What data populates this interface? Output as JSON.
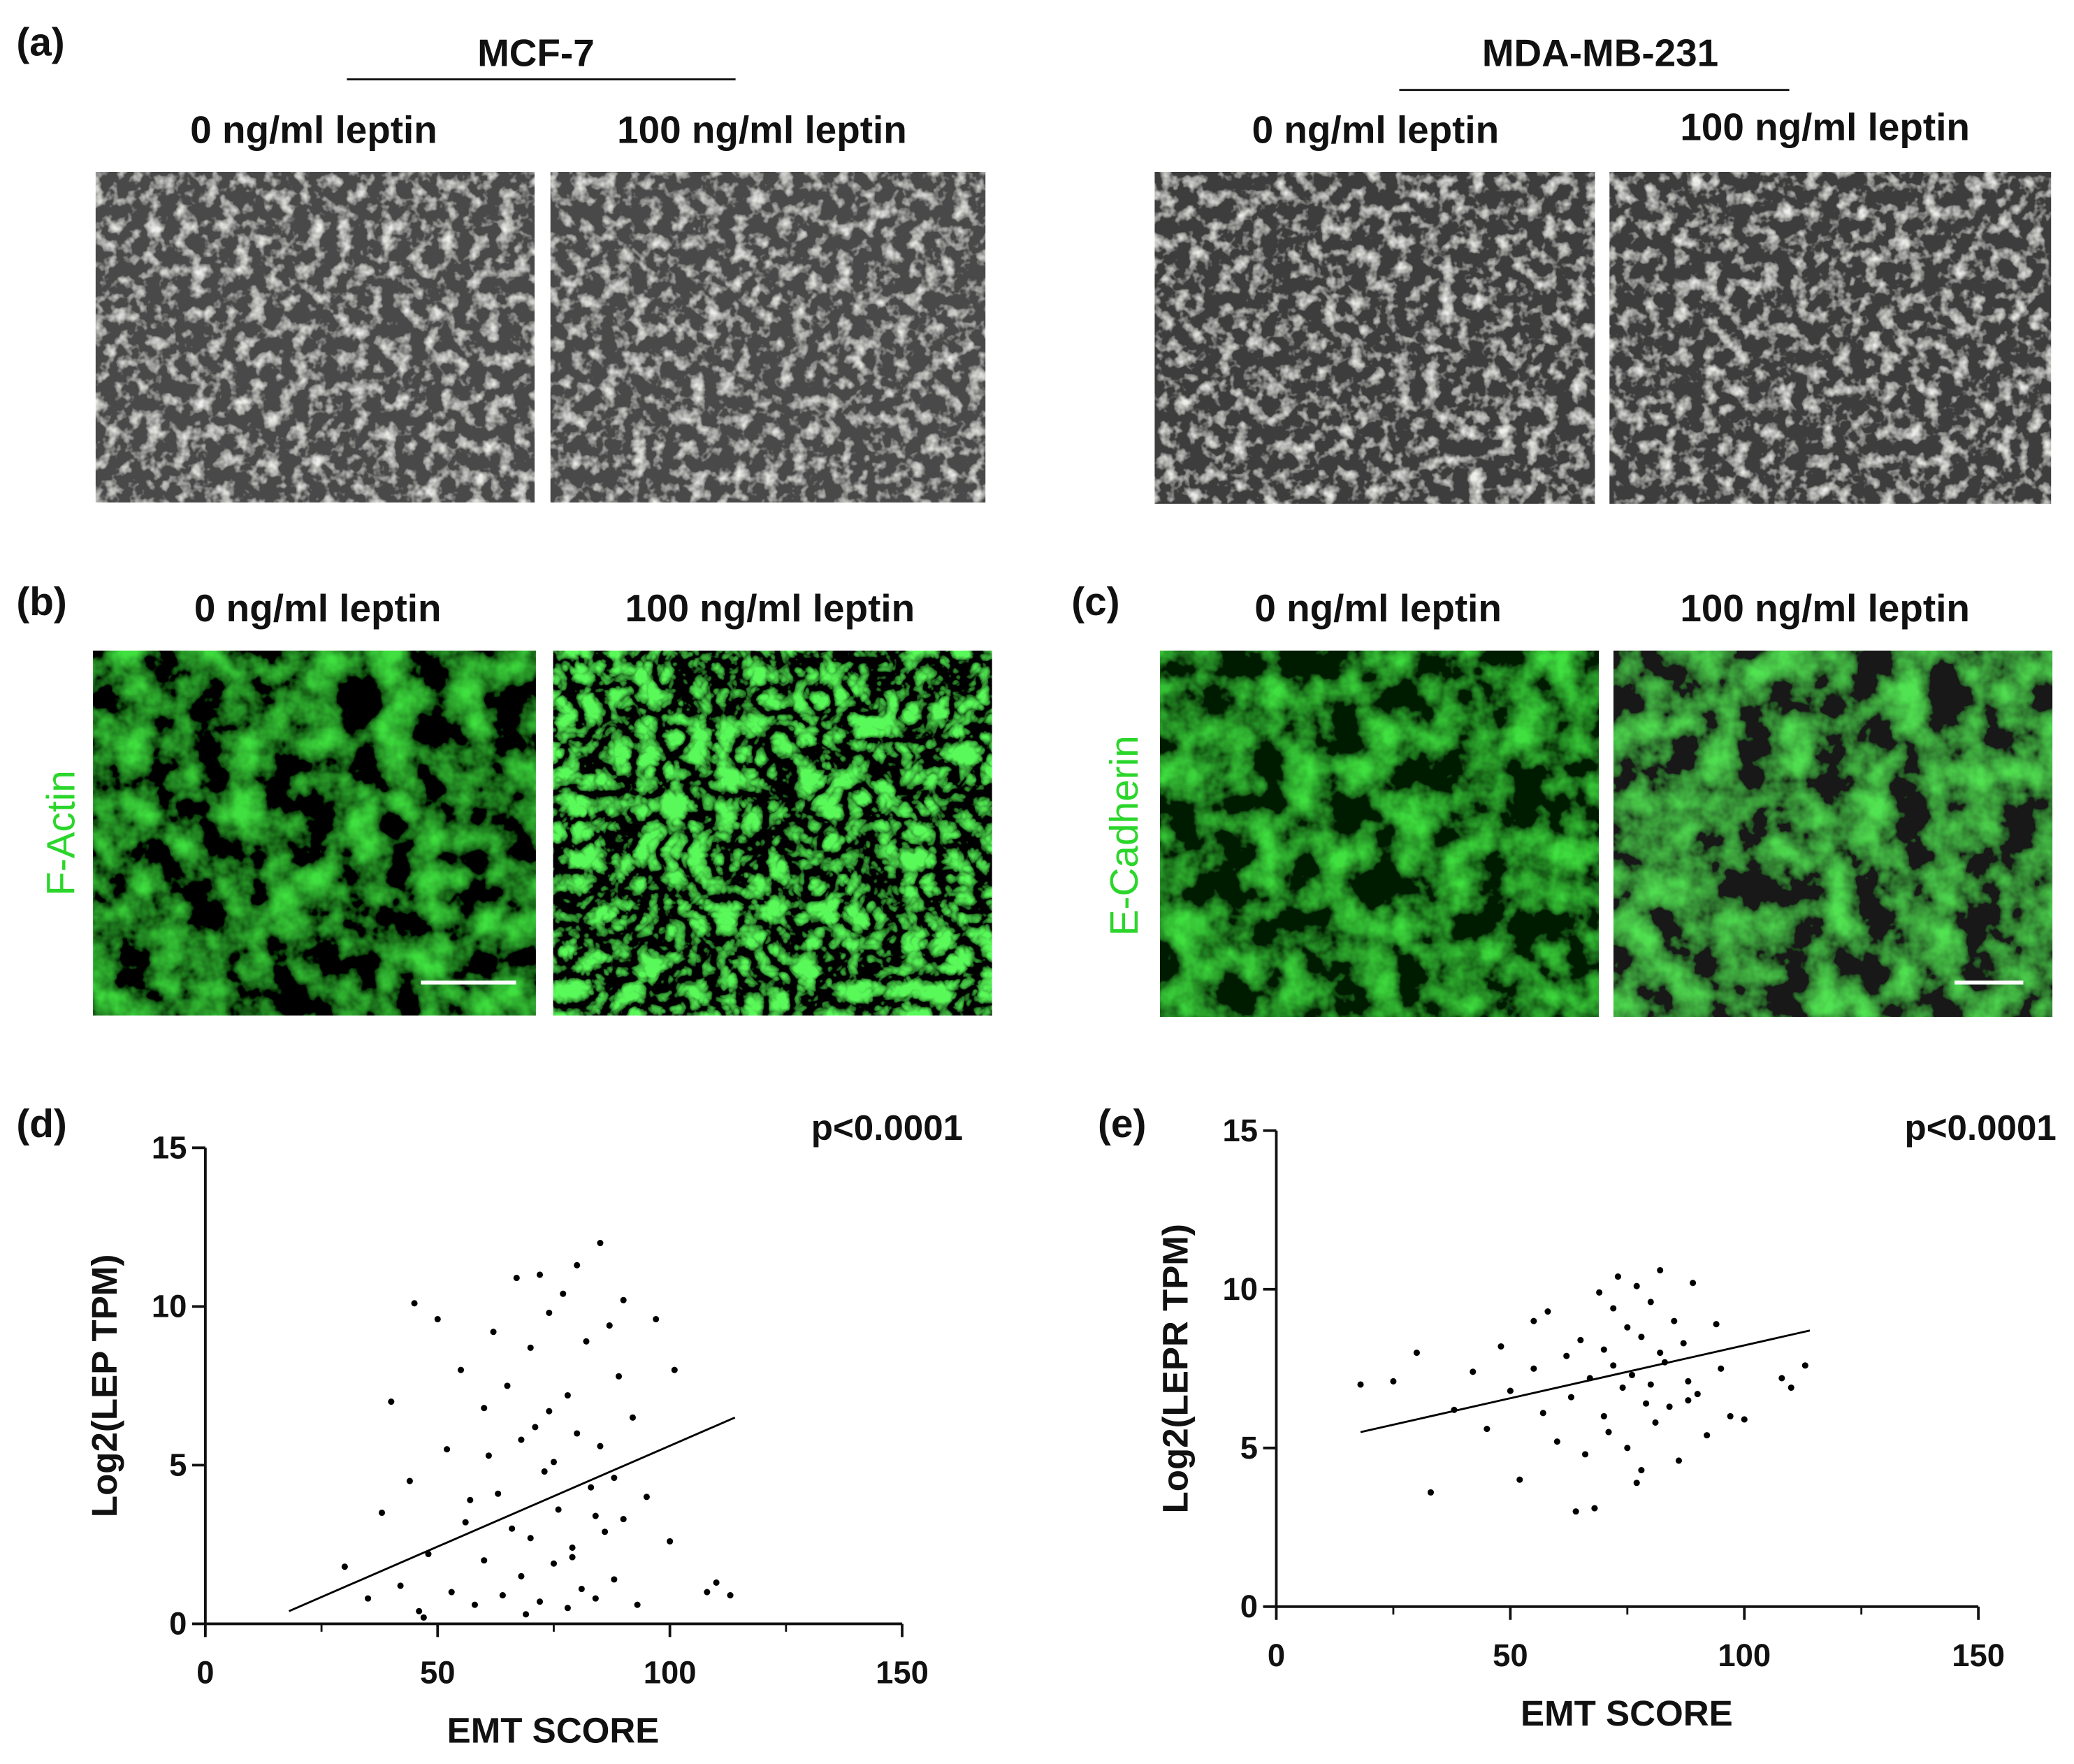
{
  "panel_labels": [
    "(a)",
    "(b)",
    "(c)",
    "(d)",
    "(e)"
  ],
  "panel_a": {
    "groups": [
      {
        "title": "MCF-7",
        "conditions": [
          "0 ng/ml leptin",
          "100 ng/ml leptin"
        ]
      },
      {
        "title": "MDA-MB-231",
        "conditions": [
          "0 ng/ml leptin",
          "100 ng/ml leptin"
        ]
      }
    ]
  },
  "panel_b": {
    "conditions": [
      "0 ng/ml leptin",
      "100 ng/ml leptin"
    ],
    "stain": "F-Actin"
  },
  "panel_c": {
    "conditions": [
      "0 ng/ml leptin",
      "100 ng/ml leptin"
    ],
    "stain": "E-Cadherin"
  },
  "chart_data": [
    {
      "type": "scatter",
      "xlabel": "EMT SCORE",
      "ylabel": "Log2(LEP TPM)",
      "annotation": "p<0.0001",
      "color": "#000000",
      "xlim": [
        0,
        150
      ],
      "ylim": [
        0,
        15
      ],
      "xticks": [
        0,
        50,
        100,
        150
      ],
      "xminor_ticks": [
        25,
        75,
        125
      ],
      "yticks": [
        0,
        5,
        10,
        15
      ],
      "x": [
        30,
        35,
        38,
        40,
        42,
        44,
        45,
        46,
        48,
        50,
        52,
        53,
        55,
        56,
        58,
        60,
        60,
        62,
        63,
        64,
        65,
        66,
        67,
        68,
        68,
        69,
        70,
        70,
        71,
        72,
        72,
        73,
        74,
        75,
        75,
        76,
        77,
        78,
        78,
        79,
        80,
        80,
        81,
        82,
        83,
        84,
        85,
        85,
        86,
        87,
        88,
        89,
        90,
        90,
        92,
        93,
        95,
        97,
        100,
        101,
        108,
        110,
        113,
        47,
        57,
        61,
        74,
        79,
        84,
        88
      ],
      "y": [
        1.8,
        0.8,
        3.5,
        7.0,
        1.2,
        4.5,
        10.1,
        0.4,
        2.2,
        9.6,
        5.5,
        1.0,
        8.0,
        3.2,
        0.6,
        6.8,
        2.0,
        9.2,
        4.1,
        0.9,
        7.5,
        3.0,
        10.9,
        1.5,
        5.8,
        0.3,
        8.7,
        2.7,
        6.2,
        11.0,
        0.7,
        4.8,
        9.8,
        1.9,
        5.1,
        3.6,
        10.4,
        0.5,
        7.2,
        2.4,
        11.3,
        6.0,
        1.1,
        8.9,
        4.3,
        0.8,
        12.0,
        5.6,
        2.9,
        9.4,
        1.4,
        7.8,
        3.3,
        10.2,
        6.5,
        0.6,
        4.0,
        9.6,
        2.6,
        8.0,
        1.0,
        1.3,
        0.9,
        0.2,
        3.9,
        5.3,
        6.7,
        2.1,
        3.4,
        4.6
      ],
      "fit_line": {
        "x": [
          18,
          114
        ],
        "y": [
          0.4,
          6.5
        ]
      }
    },
    {
      "type": "scatter",
      "xlabel": "EMT SCORE",
      "ylabel": "Log2(LEPR TPM)",
      "annotation": "p<0.0001",
      "color": "#000000",
      "xlim": [
        0,
        150
      ],
      "ylim": [
        0,
        15
      ],
      "xticks": [
        0,
        50,
        100,
        150
      ],
      "xminor_ticks": [
        25,
        75,
        125
      ],
      "yticks": [
        0,
        5,
        10,
        15
      ],
      "x": [
        18,
        25,
        30,
        33,
        38,
        42,
        45,
        48,
        50,
        52,
        55,
        57,
        58,
        60,
        62,
        63,
        65,
        66,
        67,
        68,
        69,
        70,
        70,
        71,
        72,
        73,
        74,
        75,
        75,
        76,
        77,
        78,
        78,
        79,
        80,
        80,
        81,
        82,
        83,
        84,
        85,
        86,
        87,
        88,
        89,
        90,
        92,
        94,
        95,
        97,
        100,
        108,
        110,
        113,
        64,
        72,
        77,
        82,
        88,
        55
      ],
      "y": [
        7.0,
        7.1,
        8.0,
        3.6,
        6.2,
        7.4,
        5.6,
        8.2,
        6.8,
        4.0,
        7.5,
        6.1,
        9.3,
        5.2,
        7.9,
        6.6,
        8.4,
        4.8,
        7.2,
        3.1,
        9.9,
        6.0,
        8.1,
        5.5,
        7.6,
        10.4,
        6.9,
        8.8,
        5.0,
        7.3,
        10.1,
        4.3,
        8.5,
        6.4,
        9.6,
        7.0,
        5.8,
        10.6,
        7.7,
        6.3,
        9.0,
        4.6,
        8.3,
        7.1,
        10.2,
        6.7,
        5.4,
        8.9,
        7.5,
        6.0,
        5.9,
        7.2,
        6.9,
        7.6,
        3.0,
        9.4,
        3.9,
        8.0,
        6.5,
        9.0
      ],
      "fit_line": {
        "x": [
          18,
          114
        ],
        "y": [
          5.5,
          8.7
        ]
      }
    }
  ]
}
